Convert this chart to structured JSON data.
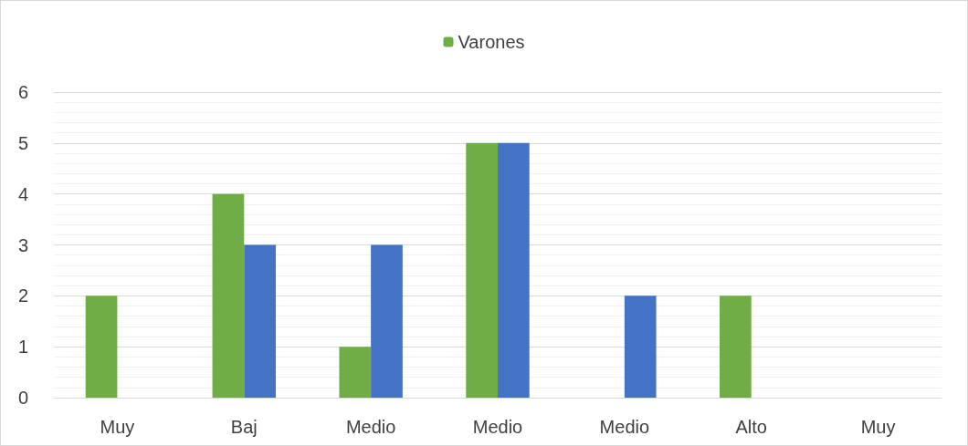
{
  "chart_data": {
    "type": "bar",
    "categories": [
      "Muy",
      "Baj",
      "Medio",
      "Medio",
      "Medio",
      "Alto",
      "Muy"
    ],
    "series": [
      {
        "name": "Varones",
        "color": "#70ad47",
        "values": [
          2,
          4,
          1,
          5,
          0,
          2,
          0
        ]
      },
      {
        "color": "#4472c4",
        "values": [
          0,
          3,
          3,
          5,
          2,
          0,
          0
        ]
      }
    ],
    "ylim": [
      0,
      6
    ],
    "yticks": [
      0,
      1,
      2,
      3,
      4,
      5,
      6
    ],
    "grid": "y",
    "legend": "top"
  }
}
